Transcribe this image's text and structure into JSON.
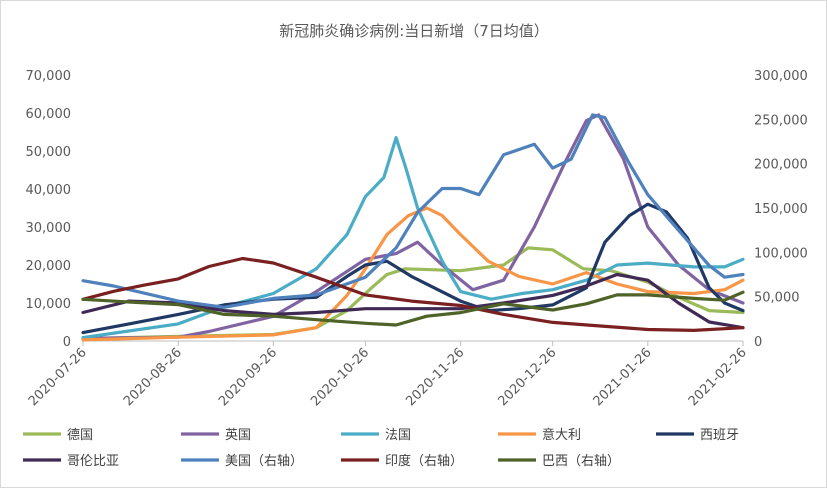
{
  "chart_data": {
    "type": "line",
    "title": "新冠肺炎确诊病例:当日新增（7日均值）",
    "x_tick_labels": [
      "2020-07-26",
      "2020-08-26",
      "2020-09-26",
      "2020-10-26",
      "2020-11-26",
      "2020-12-26",
      "2021-01-26",
      "2021-02-26"
    ],
    "x_range": [
      "2020-07-26",
      "2021-02-26"
    ],
    "y_left": {
      "min": 0,
      "max": 70000,
      "ticks": [
        "0",
        "10,000",
        "20,000",
        "30,000",
        "40,000",
        "50,000",
        "60,000",
        "70,000"
      ]
    },
    "y_right": {
      "min": 0,
      "max": 300000,
      "ticks": [
        "0",
        "50,000",
        "100,000",
        "150,000",
        "200,000",
        "250,000",
        "300,000"
      ]
    },
    "grid": false,
    "legend_position": "bottom",
    "series": [
      {
        "name": "德国",
        "axis": "left",
        "color": "#9bbb59",
        "points": [
          [
            "2020-07-26",
            600
          ],
          [
            "2020-08-26",
            1200
          ],
          [
            "2020-09-26",
            1700
          ],
          [
            "2020-10-10",
            3500
          ],
          [
            "2020-10-20",
            8000
          ],
          [
            "2020-10-28",
            14000
          ],
          [
            "2020-11-02",
            17500
          ],
          [
            "2020-11-08",
            19000
          ],
          [
            "2020-11-26",
            18500
          ],
          [
            "2020-12-10",
            20000
          ],
          [
            "2020-12-18",
            24500
          ],
          [
            "2020-12-26",
            24000
          ],
          [
            "2021-01-05",
            19000
          ],
          [
            "2021-01-14",
            18500
          ],
          [
            "2021-01-20",
            17000
          ],
          [
            "2021-01-26",
            15500
          ],
          [
            "2021-02-05",
            11500
          ],
          [
            "2021-02-15",
            8000
          ],
          [
            "2021-02-26",
            7500
          ]
        ]
      },
      {
        "name": "英国",
        "axis": "left",
        "color": "#8064a2",
        "points": [
          [
            "2020-07-26",
            700
          ],
          [
            "2020-08-26",
            1000
          ],
          [
            "2020-09-05",
            2500
          ],
          [
            "2020-09-26",
            6500
          ],
          [
            "2020-10-10",
            13000
          ],
          [
            "2020-10-26",
            21500
          ],
          [
            "2020-11-05",
            23000
          ],
          [
            "2020-11-12",
            26000
          ],
          [
            "2020-11-20",
            20000
          ],
          [
            "2020-11-30",
            13500
          ],
          [
            "2020-12-10",
            16000
          ],
          [
            "2020-12-20",
            30000
          ],
          [
            "2020-12-30",
            47000
          ],
          [
            "2021-01-06",
            58000
          ],
          [
            "2021-01-10",
            59500
          ],
          [
            "2021-01-18",
            48000
          ],
          [
            "2021-01-26",
            30000
          ],
          [
            "2021-02-05",
            20000
          ],
          [
            "2021-02-15",
            13500
          ],
          [
            "2021-02-26",
            10000
          ]
        ]
      },
      {
        "name": "法国",
        "axis": "left",
        "color": "#4bacc6",
        "points": [
          [
            "2020-07-26",
            900
          ],
          [
            "2020-08-26",
            4500
          ],
          [
            "2020-09-10",
            9000
          ],
          [
            "2020-09-26",
            12500
          ],
          [
            "2020-10-10",
            19000
          ],
          [
            "2020-10-20",
            28000
          ],
          [
            "2020-10-26",
            38000
          ],
          [
            "2020-11-01",
            43000
          ],
          [
            "2020-11-05",
            53500
          ],
          [
            "2020-11-08",
            46000
          ],
          [
            "2020-11-12",
            35000
          ],
          [
            "2020-11-20",
            21000
          ],
          [
            "2020-11-26",
            13000
          ],
          [
            "2020-12-06",
            11000
          ],
          [
            "2020-12-16",
            12500
          ],
          [
            "2020-12-26",
            13500
          ],
          [
            "2021-01-06",
            16000
          ],
          [
            "2021-01-16",
            20000
          ],
          [
            "2021-01-26",
            20500
          ],
          [
            "2021-02-10",
            19500
          ],
          [
            "2021-02-20",
            19500
          ],
          [
            "2021-02-26",
            21500
          ]
        ]
      },
      {
        "name": "意大利",
        "axis": "left",
        "color": "#f79646",
        "points": [
          [
            "2020-07-26",
            300
          ],
          [
            "2020-08-26",
            1000
          ],
          [
            "2020-09-26",
            1600
          ],
          [
            "2020-10-10",
            3500
          ],
          [
            "2020-10-20",
            12000
          ],
          [
            "2020-10-26",
            19000
          ],
          [
            "2020-11-02",
            28000
          ],
          [
            "2020-11-09",
            33000
          ],
          [
            "2020-11-15",
            35000
          ],
          [
            "2020-11-20",
            33000
          ],
          [
            "2020-11-26",
            28000
          ],
          [
            "2020-12-05",
            21000
          ],
          [
            "2020-12-15",
            17000
          ],
          [
            "2020-12-26",
            15000
          ],
          [
            "2021-01-06",
            18000
          ],
          [
            "2021-01-16",
            15000
          ],
          [
            "2021-01-26",
            13000
          ],
          [
            "2021-02-10",
            12500
          ],
          [
            "2021-02-20",
            13500
          ],
          [
            "2021-02-26",
            16000
          ]
        ]
      },
      {
        "name": "西班牙",
        "axis": "left",
        "color": "#1f3864",
        "points": [
          [
            "2020-07-26",
            2200
          ],
          [
            "2020-08-10",
            4500
          ],
          [
            "2020-08-26",
            7000
          ],
          [
            "2020-09-10",
            9500
          ],
          [
            "2020-09-26",
            11000
          ],
          [
            "2020-10-10",
            11500
          ],
          [
            "2020-10-20",
            17000
          ],
          [
            "2020-10-26",
            20000
          ],
          [
            "2020-11-02",
            21000
          ],
          [
            "2020-11-10",
            17000
          ],
          [
            "2020-11-26",
            10500
          ],
          [
            "2020-12-05",
            8000
          ],
          [
            "2020-12-15",
            8500
          ],
          [
            "2020-12-26",
            9500
          ],
          [
            "2021-01-06",
            14000
          ],
          [
            "2021-01-12",
            26000
          ],
          [
            "2021-01-20",
            33000
          ],
          [
            "2021-01-26",
            36000
          ],
          [
            "2021-02-01",
            34000
          ],
          [
            "2021-02-08",
            27000
          ],
          [
            "2021-02-15",
            14000
          ],
          [
            "2021-02-20",
            10000
          ],
          [
            "2021-02-26",
            8000
          ]
        ]
      },
      {
        "name": "哥伦比亚",
        "axis": "left",
        "color": "#3f2a56",
        "points": [
          [
            "2020-07-26",
            7500
          ],
          [
            "2020-08-10",
            10500
          ],
          [
            "2020-08-26",
            10000
          ],
          [
            "2020-09-10",
            8000
          ],
          [
            "2020-09-26",
            7000
          ],
          [
            "2020-10-10",
            7500
          ],
          [
            "2020-10-26",
            8500
          ],
          [
            "2020-11-10",
            8500
          ],
          [
            "2020-11-26",
            8500
          ],
          [
            "2020-12-10",
            10000
          ],
          [
            "2020-12-26",
            12000
          ],
          [
            "2021-01-06",
            14500
          ],
          [
            "2021-01-16",
            17500
          ],
          [
            "2021-01-26",
            16000
          ],
          [
            "2021-02-05",
            10000
          ],
          [
            "2021-02-15",
            5000
          ],
          [
            "2021-02-26",
            3500
          ]
        ]
      },
      {
        "name": "美国（右轴）",
        "axis": "right",
        "color": "#4f81bd",
        "points": [
          [
            "2020-07-26",
            68000
          ],
          [
            "2020-08-05",
            62000
          ],
          [
            "2020-08-26",
            45000
          ],
          [
            "2020-09-10",
            38000
          ],
          [
            "2020-09-26",
            48000
          ],
          [
            "2020-10-10",
            52000
          ],
          [
            "2020-10-26",
            72000
          ],
          [
            "2020-11-05",
            105000
          ],
          [
            "2020-11-12",
            145000
          ],
          [
            "2020-11-20",
            172000
          ],
          [
            "2020-11-26",
            172000
          ],
          [
            "2020-12-02",
            165000
          ],
          [
            "2020-12-10",
            210000
          ],
          [
            "2020-12-20",
            222000
          ],
          [
            "2020-12-26",
            195000
          ],
          [
            "2021-01-01",
            205000
          ],
          [
            "2021-01-08",
            255000
          ],
          [
            "2021-01-12",
            252000
          ],
          [
            "2021-01-20",
            200000
          ],
          [
            "2021-01-26",
            165000
          ],
          [
            "2021-02-05",
            125000
          ],
          [
            "2021-02-15",
            85000
          ],
          [
            "2021-02-20",
            72000
          ],
          [
            "2021-02-26",
            75000
          ]
        ]
      },
      {
        "name": "印度（右轴）",
        "axis": "right",
        "color": "#7b2020",
        "points": [
          [
            "2020-07-26",
            47000
          ],
          [
            "2020-08-05",
            56000
          ],
          [
            "2020-08-15",
            63000
          ],
          [
            "2020-08-26",
            70000
          ],
          [
            "2020-09-05",
            84000
          ],
          [
            "2020-09-16",
            93000
          ],
          [
            "2020-09-26",
            88000
          ],
          [
            "2020-10-10",
            72000
          ],
          [
            "2020-10-26",
            52000
          ],
          [
            "2020-11-10",
            45000
          ],
          [
            "2020-11-26",
            40000
          ],
          [
            "2020-12-10",
            30000
          ],
          [
            "2020-12-26",
            21000
          ],
          [
            "2021-01-10",
            17000
          ],
          [
            "2021-01-26",
            13000
          ],
          [
            "2021-02-10",
            12000
          ],
          [
            "2021-02-26",
            15000
          ]
        ]
      },
      {
        "name": "巴西（右轴）",
        "axis": "right",
        "color": "#4f6228",
        "points": [
          [
            "2020-07-26",
            47000
          ],
          [
            "2020-08-10",
            44000
          ],
          [
            "2020-08-26",
            41000
          ],
          [
            "2020-09-10",
            30000
          ],
          [
            "2020-09-26",
            28000
          ],
          [
            "2020-10-10",
            24000
          ],
          [
            "2020-10-26",
            20000
          ],
          [
            "2020-11-05",
            18000
          ],
          [
            "2020-11-15",
            28000
          ],
          [
            "2020-11-26",
            32000
          ],
          [
            "2020-12-10",
            42000
          ],
          [
            "2020-12-26",
            35000
          ],
          [
            "2021-01-06",
            42000
          ],
          [
            "2021-01-16",
            52000
          ],
          [
            "2021-01-26",
            52000
          ],
          [
            "2021-02-10",
            48000
          ],
          [
            "2021-02-20",
            46000
          ],
          [
            "2021-02-26",
            55000
          ]
        ]
      }
    ]
  }
}
